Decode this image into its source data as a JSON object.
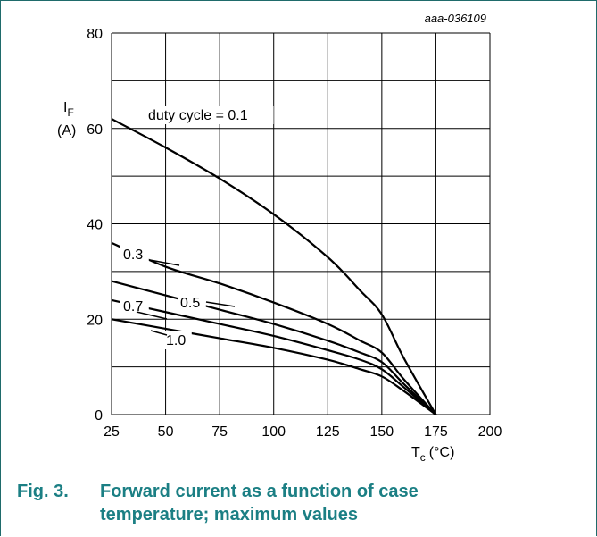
{
  "figure_ref": "aaa-036109",
  "caption": {
    "number": "Fig. 3.",
    "text": "Forward current as a function of case temperature; maximum values"
  },
  "colors": {
    "caption": "#1b7f84",
    "frame": "#1f6b6b",
    "curve": "#000000",
    "grid": "#000000"
  },
  "chart_data": {
    "type": "line",
    "title": "",
    "ylabel": "I_F",
    "ylabel_sub": "F",
    "ylabel_main": "I",
    "ylabel_unit": "(A)",
    "xlabel_main": "T",
    "xlabel_sub": "c",
    "xlabel_unit": "(°C)",
    "xlim": [
      25,
      200
    ],
    "ylim": [
      0,
      80
    ],
    "xticks": [
      25,
      50,
      75,
      100,
      125,
      150,
      175,
      200
    ],
    "yticks": [
      0,
      20,
      40,
      60,
      80
    ],
    "grid": true,
    "series": [
      {
        "name": "duty cycle = 0.1",
        "x": [
          25,
          50,
          75,
          100,
          125,
          140,
          150,
          160,
          175
        ],
        "y": [
          62,
          56,
          49.5,
          42,
          33,
          26,
          21,
          12,
          0
        ]
      },
      {
        "name": "0.3",
        "x": [
          25,
          50,
          75,
          100,
          125,
          140,
          150,
          160,
          175
        ],
        "y": [
          36,
          31,
          27.5,
          23.5,
          19,
          15.5,
          13,
          7.5,
          0
        ]
      },
      {
        "name": "0.5",
        "x": [
          25,
          50,
          75,
          100,
          125,
          140,
          150,
          160,
          175
        ],
        "y": [
          28,
          25,
          22,
          19,
          15.5,
          13,
          11,
          6.5,
          0
        ]
      },
      {
        "name": "0.7",
        "x": [
          25,
          50,
          75,
          100,
          125,
          140,
          150,
          160,
          175
        ],
        "y": [
          24,
          21.5,
          19,
          16.5,
          13.5,
          11.5,
          9.5,
          5.8,
          0
        ]
      },
      {
        "name": "1.0",
        "x": [
          25,
          50,
          75,
          100,
          125,
          140,
          150,
          160,
          175
        ],
        "y": [
          20,
          18,
          16,
          14,
          11.5,
          9.5,
          8,
          5,
          0
        ]
      }
    ]
  }
}
